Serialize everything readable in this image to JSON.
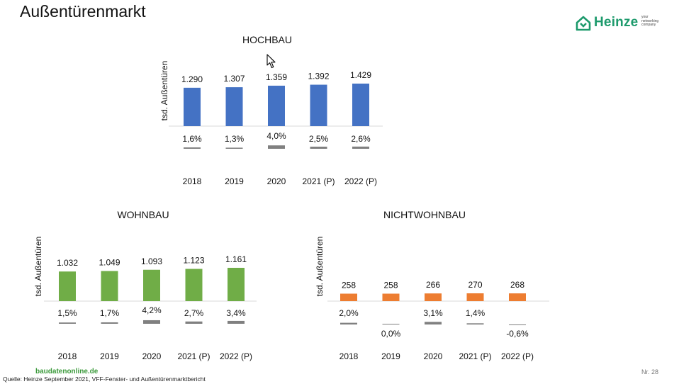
{
  "page": {
    "title": "Außentürenmarkt",
    "brand_name": "Heinze",
    "brand_tagline": [
      "your",
      "networking",
      "company"
    ],
    "source": "Quelle: Heinze September 2021, VFF-Fenster- und Außentürenmarktbericht",
    "site": "baudatenonline.de",
    "page_number": "Nr. 28",
    "brand_color": "#1d9a6c"
  },
  "chart_data": [
    {
      "id": "hochbau",
      "type": "bar",
      "title": "HOCHBAU",
      "ylabel": "tsd. Außentüren",
      "color": "#4472c4",
      "change_color": "#808080",
      "categories": [
        "2018",
        "2019",
        "2020",
        "2021 (P)",
        "2022 (P)"
      ],
      "values": [
        1290,
        1307,
        1359,
        1392,
        1429
      ],
      "value_labels": [
        "1.290",
        "1.307",
        "1.359",
        "1.392",
        "1.429"
      ],
      "changes": [
        1.6,
        1.3,
        4.0,
        2.5,
        2.6
      ],
      "change_labels": [
        "1,6%",
        "1,3%",
        "4,0%",
        "2,5%",
        "2,6%"
      ]
    },
    {
      "id": "wohnbau",
      "type": "bar",
      "title": "WOHNBAU",
      "ylabel": "tsd. Außentüren",
      "color": "#70ad47",
      "change_color": "#808080",
      "categories": [
        "2018",
        "2019",
        "2020",
        "2021 (P)",
        "2022 (P)"
      ],
      "values": [
        1032,
        1049,
        1093,
        1123,
        1161
      ],
      "value_labels": [
        "1.032",
        "1.049",
        "1.093",
        "1.123",
        "1.161"
      ],
      "changes": [
        1.5,
        1.7,
        4.2,
        2.7,
        3.4
      ],
      "change_labels": [
        "1,5%",
        "1,7%",
        "4,2%",
        "2,7%",
        "3,4%"
      ]
    },
    {
      "id": "nichtwohnbau",
      "type": "bar",
      "title": "NICHTWOHNBAU",
      "ylabel": "tsd. Außentüren",
      "color": "#ed7d31",
      "change_color": "#808080",
      "categories": [
        "2018",
        "2019",
        "2020",
        "2021 (P)",
        "2022 (P)"
      ],
      "values": [
        258,
        258,
        266,
        270,
        268
      ],
      "value_labels": [
        "258",
        "258",
        "266",
        "270",
        "268"
      ],
      "changes": [
        2.0,
        0.0,
        3.1,
        1.4,
        -0.6
      ],
      "change_labels": [
        "2,0%",
        "0,0%",
        "3,1%",
        "1,4%",
        "-0,6%"
      ]
    }
  ]
}
